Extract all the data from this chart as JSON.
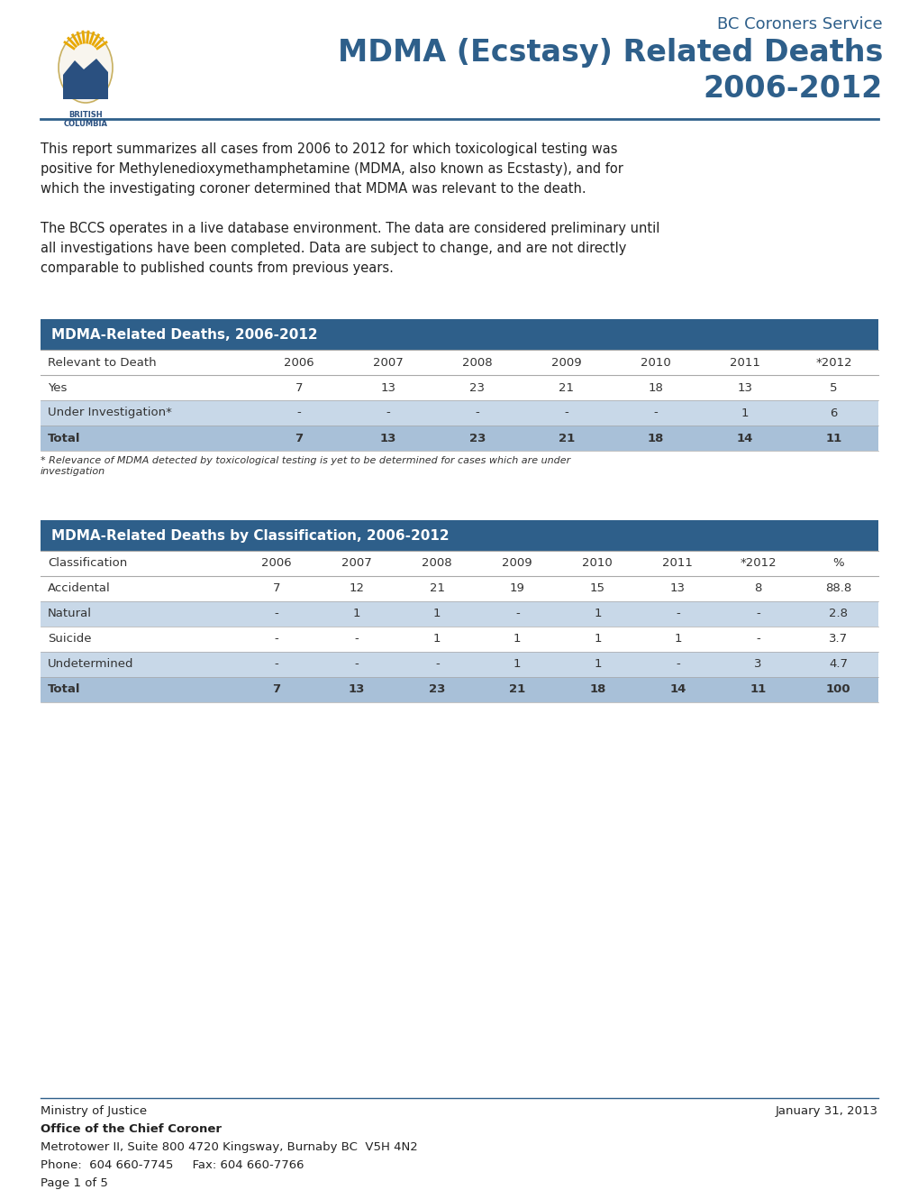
{
  "title_service": "BC Coroners Service",
  "title_main": "MDMA (Ecstasy) Related Deaths",
  "title_year": "2006-2012",
  "title_color": "#2E5F8A",
  "header_line_color": "#2E5F8A",
  "bg_color": "#FFFFFF",
  "para1_lines": [
    "This report summarizes all cases from 2006 to 2012 for which toxicological testing was",
    "positive for Methylenedioxymethamphetamine (MDMA, also known as Ecstasty), and for",
    "which the investigating coroner determined that MDMA was relevant to the death."
  ],
  "para2_lines": [
    "The BCCS operates in a live database environment. The data are considered preliminary until",
    "all investigations have been completed. Data are subject to change, and are not directly",
    "comparable to published counts from previous years."
  ],
  "table1_title": "MDMA-Related Deaths, 2006-2012",
  "table1_header_color": "#2E5F8A",
  "table1_header_text_color": "#FFFFFF",
  "table1_row_alt_color": "#C8D8E8",
  "table1_total_color": "#A8C0D8",
  "table1_cols": [
    "Relevant to Death",
    "2006",
    "2007",
    "2008",
    "2009",
    "2010",
    "2011",
    "*2012"
  ],
  "table1_rows": [
    [
      "Yes",
      "7",
      "13",
      "23",
      "21",
      "18",
      "13",
      "5"
    ],
    [
      "Under Investigation*",
      "-",
      "-",
      "-",
      "-",
      "-",
      "1",
      "6"
    ],
    [
      "Total",
      "7",
      "13",
      "23",
      "21",
      "18",
      "14",
      "11"
    ]
  ],
  "table1_note": "* Relevance of MDMA detected by toxicological testing is yet to be determined for cases which are under\ninvestigation",
  "table2_title": "MDMA-Related Deaths by Classification, 2006-2012",
  "table2_header_color": "#2E5F8A",
  "table2_header_text_color": "#FFFFFF",
  "table2_row_alt_color": "#C8D8E8",
  "table2_total_color": "#A8C0D8",
  "table2_cols": [
    "Classification",
    "2006",
    "2007",
    "2008",
    "2009",
    "2010",
    "2011",
    "*2012",
    "%"
  ],
  "table2_rows": [
    [
      "Accidental",
      "7",
      "12",
      "21",
      "19",
      "15",
      "13",
      "8",
      "88.8"
    ],
    [
      "Natural",
      "-",
      "1",
      "1",
      "-",
      "1",
      "-",
      "-",
      "2.8"
    ],
    [
      "Suicide",
      "-",
      "-",
      "1",
      "1",
      "1",
      "1",
      "-",
      "3.7"
    ],
    [
      "Undetermined",
      "-",
      "-",
      "-",
      "1",
      "1",
      "-",
      "3",
      "4.7"
    ],
    [
      "Total",
      "7",
      "13",
      "23",
      "21",
      "18",
      "14",
      "11",
      "100"
    ]
  ],
  "footer_line_color": "#2E5F8A",
  "footer_left1": "Ministry of Justice",
  "footer_left2": "Office of the Chief Coroner",
  "footer_left3": "Metrotower II, Suite 800 4720 Kingsway, Burnaby BC  V5H 4N2",
  "footer_left4": "Phone:  604 660-7745     Fax: 604 660-7766",
  "footer_left5": "Page 1 of 5",
  "footer_right": "January 31, 2013"
}
